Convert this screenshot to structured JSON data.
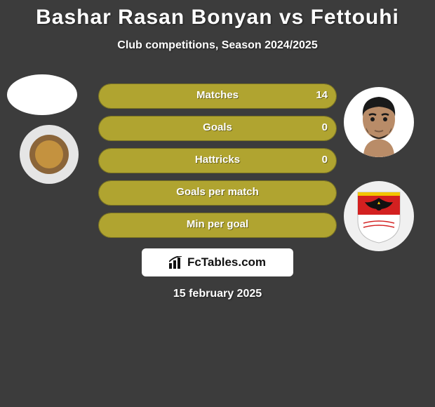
{
  "title": "Bashar Rasan Bonyan vs Fettouhi",
  "subtitle": "Club competitions, Season 2024/2025",
  "date": "15 february 2025",
  "logo_text": "FcTables.com",
  "bar_bg_color": "#b0a430",
  "bar_border_color": "#7a7322",
  "bars": [
    {
      "label": "Matches",
      "left_pct": 0,
      "right_pct": 100,
      "left_val": "",
      "right_val": "14"
    },
    {
      "label": "Goals",
      "left_pct": 50,
      "right_pct": 50,
      "left_val": "",
      "right_val": "0"
    },
    {
      "label": "Hattricks",
      "left_pct": 50,
      "right_pct": 50,
      "left_val": "",
      "right_val": "0"
    },
    {
      "label": "Goals per match",
      "left_pct": 50,
      "right_pct": 50,
      "left_val": "",
      "right_val": ""
    },
    {
      "label": "Min per goal",
      "left_pct": 50,
      "right_pct": 50,
      "left_val": "",
      "right_val": ""
    }
  ],
  "player_right_face": {
    "skin": "#b98c68",
    "hair": "#1a1a1a",
    "shirt": "#ffffff"
  },
  "club_right_shield": {
    "top": "#d32020",
    "bottom": "#ffffff",
    "accent": "#f2c500",
    "eagle": "#111111"
  }
}
